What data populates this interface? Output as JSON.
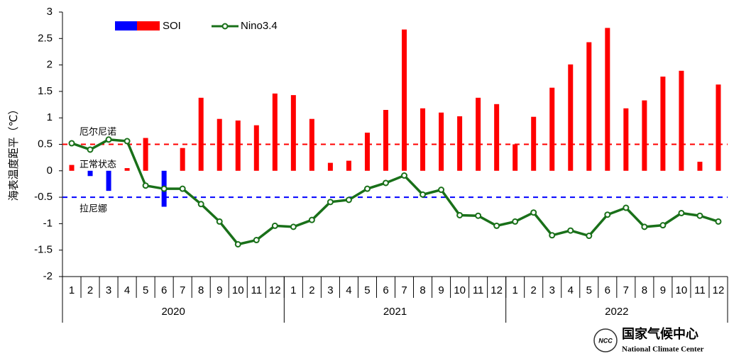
{
  "chart_data": {
    "type": "bar",
    "y_label": "海表温度距平（℃）",
    "categories": [
      "1",
      "2",
      "3",
      "4",
      "5",
      "6",
      "7",
      "8",
      "9",
      "10",
      "11",
      "12",
      "1",
      "2",
      "3",
      "4",
      "5",
      "6",
      "7",
      "8",
      "9",
      "10",
      "11",
      "12",
      "1",
      "2",
      "3",
      "4",
      "5",
      "6",
      "7",
      "8",
      "9",
      "10",
      "11",
      "12"
    ],
    "groups": [
      "2020",
      "2021",
      "2022"
    ],
    "series": [
      {
        "name": "SOI",
        "type": "bar",
        "color": "#ff0000",
        "negative_color": "#0000ff",
        "values": [
          0.11,
          -0.1,
          -0.38,
          0.05,
          0.62,
          -0.68,
          0.43,
          1.38,
          0.98,
          0.95,
          0.86,
          1.46,
          1.43,
          0.98,
          0.15,
          0.19,
          0.72,
          1.15,
          2.67,
          1.18,
          1.1,
          1.03,
          1.38,
          1.26,
          0.5,
          1.02,
          1.57,
          2.01,
          2.43,
          2.7,
          1.18,
          1.33,
          1.78,
          1.89,
          0.17,
          1.63
        ]
      },
      {
        "name": "Nino3.4",
        "type": "line",
        "color": "#197019",
        "values": [
          0.52,
          0.4,
          0.59,
          0.56,
          -0.28,
          -0.34,
          -0.34,
          -0.63,
          -0.96,
          -1.39,
          -1.31,
          -1.04,
          -1.06,
          -0.93,
          -0.59,
          -0.55,
          -0.34,
          -0.23,
          -0.09,
          -0.45,
          -0.36,
          -0.84,
          -0.85,
          -1.04,
          -0.96,
          -0.79,
          -1.22,
          -1.13,
          -1.23,
          -0.83,
          -0.7,
          -1.06,
          -1.03,
          -0.8,
          -0.85,
          -0.96
        ]
      }
    ],
    "ylim": [
      -2,
      3
    ],
    "yticks": [
      -2,
      -1.5,
      -1,
      -0.5,
      0,
      0.5,
      1,
      1.5,
      2,
      2.5,
      3
    ],
    "reference_lines": [
      {
        "value": 0.5,
        "label": "厄尔尼诺",
        "color": "#ff0000"
      },
      {
        "value": 0,
        "label": "正常状态"
      },
      {
        "value": -0.5,
        "label": "拉尼娜",
        "color": "#0000ff"
      }
    ],
    "logo": {
      "mark": "NCC",
      "name": "国家气候中心",
      "name_en": "National Climate Center"
    }
  }
}
